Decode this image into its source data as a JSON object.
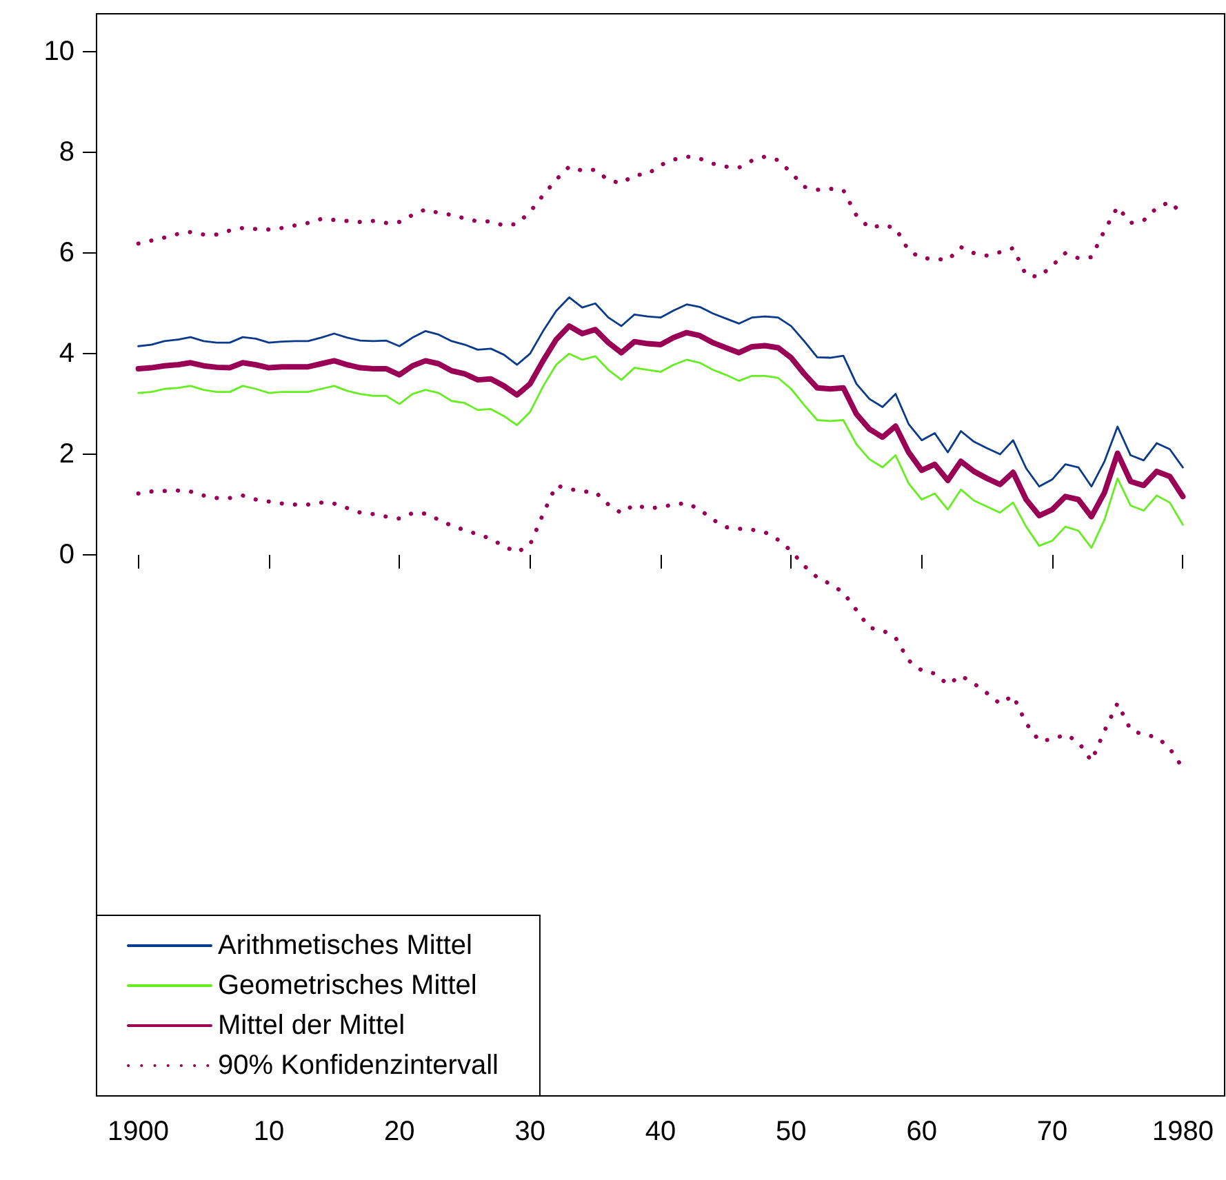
{
  "chart_data": {
    "type": "line",
    "xlim": [
      1896.8,
      1983.2
    ],
    "ylim": [
      -10.76,
      10.76
    ],
    "xticks": [
      1900,
      {
        "value": 1910,
        "label": "10"
      },
      {
        "value": 1920,
        "label": "20"
      },
      {
        "value": 1930,
        "label": "30"
      },
      {
        "value": 1940,
        "label": "40"
      },
      {
        "value": 1950,
        "label": "50"
      },
      {
        "value": 1960,
        "label": "60"
      },
      {
        "value": 1970,
        "label": "70"
      },
      1980
    ],
    "yticks": [
      0,
      2,
      4,
      6,
      8,
      10
    ],
    "x": [
      1900,
      1901,
      1902,
      1903,
      1904,
      1905,
      1906,
      1907,
      1908,
      1909,
      1910,
      1911,
      1912,
      1913,
      1914,
      1915,
      1916,
      1917,
      1918,
      1919,
      1920,
      1921,
      1922,
      1923,
      1924,
      1925,
      1926,
      1927,
      1928,
      1929,
      1930,
      1931,
      1932,
      1933,
      1934,
      1935,
      1936,
      1937,
      1938,
      1939,
      1940,
      1941,
      1942,
      1943,
      1944,
      1945,
      1946,
      1947,
      1948,
      1949,
      1950,
      1951,
      1952,
      1953,
      1954,
      1955,
      1956,
      1957,
      1958,
      1959,
      1960,
      1961,
      1962,
      1963,
      1964,
      1965,
      1966,
      1967,
      1968,
      1969,
      1970,
      1971,
      1972,
      1973,
      1974,
      1975,
      1976,
      1977,
      1978,
      1979,
      1980
    ],
    "legend": "bottom left",
    "grid": false,
    "marker": "none",
    "series": [
      {
        "name": "Arithmetisches Mittel",
        "color": "#0a3a8a",
        "line_style": "solid",
        "values": [
          4.15,
          4.18,
          4.25,
          4.28,
          4.33,
          4.25,
          4.22,
          4.22,
          4.33,
          4.3,
          4.22,
          4.24,
          4.25,
          4.25,
          4.32,
          4.4,
          4.32,
          4.26,
          4.25,
          4.26,
          4.15,
          4.32,
          4.45,
          4.38,
          4.25,
          4.18,
          4.08,
          4.1,
          3.98,
          3.78,
          4.0,
          4.45,
          4.85,
          5.12,
          4.92,
          5.0,
          4.72,
          4.55,
          4.78,
          4.74,
          4.72,
          4.86,
          4.98,
          4.93,
          4.8,
          4.7,
          4.6,
          4.72,
          4.74,
          4.72,
          4.55,
          4.25,
          3.93,
          3.92,
          3.96,
          3.4,
          3.1,
          2.94,
          3.2,
          2.6,
          2.28,
          2.42,
          2.04,
          2.46,
          2.25,
          2.12,
          2.0,
          2.28,
          1.72,
          1.36,
          1.5,
          1.8,
          1.74,
          1.36,
          1.86,
          2.55,
          1.98,
          1.88,
          2.22,
          2.1,
          1.74
        ]
      },
      {
        "name": "Geometrisches Mittel",
        "color": "#66ee22",
        "line_style": "solid",
        "values": [
          3.22,
          3.24,
          3.3,
          3.32,
          3.36,
          3.28,
          3.24,
          3.24,
          3.36,
          3.3,
          3.22,
          3.24,
          3.24,
          3.24,
          3.3,
          3.36,
          3.26,
          3.2,
          3.16,
          3.16,
          3.0,
          3.2,
          3.28,
          3.22,
          3.06,
          3.02,
          2.88,
          2.9,
          2.76,
          2.58,
          2.84,
          3.35,
          3.78,
          4.0,
          3.88,
          3.95,
          3.68,
          3.48,
          3.72,
          3.68,
          3.64,
          3.78,
          3.88,
          3.82,
          3.68,
          3.58,
          3.46,
          3.56,
          3.56,
          3.52,
          3.3,
          2.98,
          2.68,
          2.66,
          2.68,
          2.2,
          1.9,
          1.74,
          1.98,
          1.42,
          1.1,
          1.22,
          0.9,
          1.3,
          1.08,
          0.96,
          0.84,
          1.04,
          0.56,
          0.18,
          0.28,
          0.56,
          0.48,
          0.14,
          0.7,
          1.52,
          0.98,
          0.88,
          1.18,
          1.04,
          0.6
        ]
      },
      {
        "name": "Mittel der Mittel",
        "color": "#990055",
        "line_style": "solid",
        "values": [
          3.7,
          3.72,
          3.76,
          3.78,
          3.82,
          3.76,
          3.73,
          3.72,
          3.82,
          3.78,
          3.72,
          3.74,
          3.74,
          3.74,
          3.8,
          3.86,
          3.78,
          3.72,
          3.7,
          3.7,
          3.58,
          3.76,
          3.86,
          3.8,
          3.66,
          3.6,
          3.48,
          3.5,
          3.36,
          3.18,
          3.4,
          3.86,
          4.28,
          4.55,
          4.4,
          4.48,
          4.22,
          4.02,
          4.24,
          4.2,
          4.18,
          4.32,
          4.42,
          4.36,
          4.22,
          4.12,
          4.02,
          4.14,
          4.16,
          4.12,
          3.92,
          3.6,
          3.32,
          3.3,
          3.32,
          2.8,
          2.5,
          2.34,
          2.56,
          2.04,
          1.68,
          1.8,
          1.48,
          1.86,
          1.66,
          1.52,
          1.4,
          1.64,
          1.1,
          0.78,
          0.9,
          1.16,
          1.1,
          0.76,
          1.24,
          2.02,
          1.46,
          1.38,
          1.66,
          1.56,
          1.16
        ]
      },
      {
        "name": "90% Konfidenzintervall",
        "color": "#990055",
        "line_style": "dotted",
        "values": [
          6.19,
          6.25,
          6.31,
          6.38,
          6.42,
          6.37,
          6.37,
          6.45,
          6.5,
          6.48,
          6.47,
          6.5,
          6.55,
          6.6,
          6.68,
          6.66,
          6.64,
          6.62,
          6.64,
          6.6,
          6.62,
          6.76,
          6.87,
          6.8,
          6.76,
          6.69,
          6.63,
          6.63,
          6.55,
          6.58,
          6.82,
          7.15,
          7.46,
          7.72,
          7.64,
          7.66,
          7.45,
          7.39,
          7.55,
          7.57,
          7.75,
          7.86,
          7.92,
          7.88,
          7.78,
          7.72,
          7.7,
          7.84,
          7.92,
          7.85,
          7.6,
          7.32,
          7.26,
          7.28,
          7.25,
          6.75,
          6.5,
          6.56,
          6.5,
          6.05,
          5.9,
          5.89,
          5.86,
          6.12,
          6.0,
          5.95,
          6.02,
          6.1,
          5.56,
          5.53,
          5.75,
          6.0,
          5.9,
          5.92,
          6.45,
          6.92,
          6.6,
          6.65,
          6.9,
          7.02,
          6.77
        ]
      },
      {
        "color": "#990055",
        "line_style": "dotted",
        "values": [
          1.22,
          1.26,
          1.27,
          1.28,
          1.26,
          1.18,
          1.13,
          1.13,
          1.18,
          1.1,
          1.06,
          1.02,
          1.0,
          1.0,
          1.04,
          1.02,
          0.93,
          0.84,
          0.81,
          0.76,
          0.72,
          0.83,
          0.82,
          0.7,
          0.58,
          0.49,
          0.41,
          0.32,
          0.17,
          0.05,
          0.2,
          0.81,
          1.38,
          1.31,
          1.26,
          1.25,
          1.0,
          0.83,
          1.0,
          0.92,
          0.95,
          1.0,
          1.03,
          0.9,
          0.7,
          0.55,
          0.52,
          0.5,
          0.45,
          0.3,
          0.08,
          -0.22,
          -0.45,
          -0.58,
          -0.75,
          -1.1,
          -1.45,
          -1.5,
          -1.65,
          -2.1,
          -2.3,
          -2.36,
          -2.58,
          -2.4,
          -2.56,
          -2.75,
          -2.96,
          -2.8,
          -3.35,
          -3.7,
          -3.67,
          -3.57,
          -3.72,
          -4.1,
          -3.5,
          -2.95,
          -3.48,
          -3.58,
          -3.62,
          -3.85,
          -4.24
        ]
      }
    ]
  }
}
